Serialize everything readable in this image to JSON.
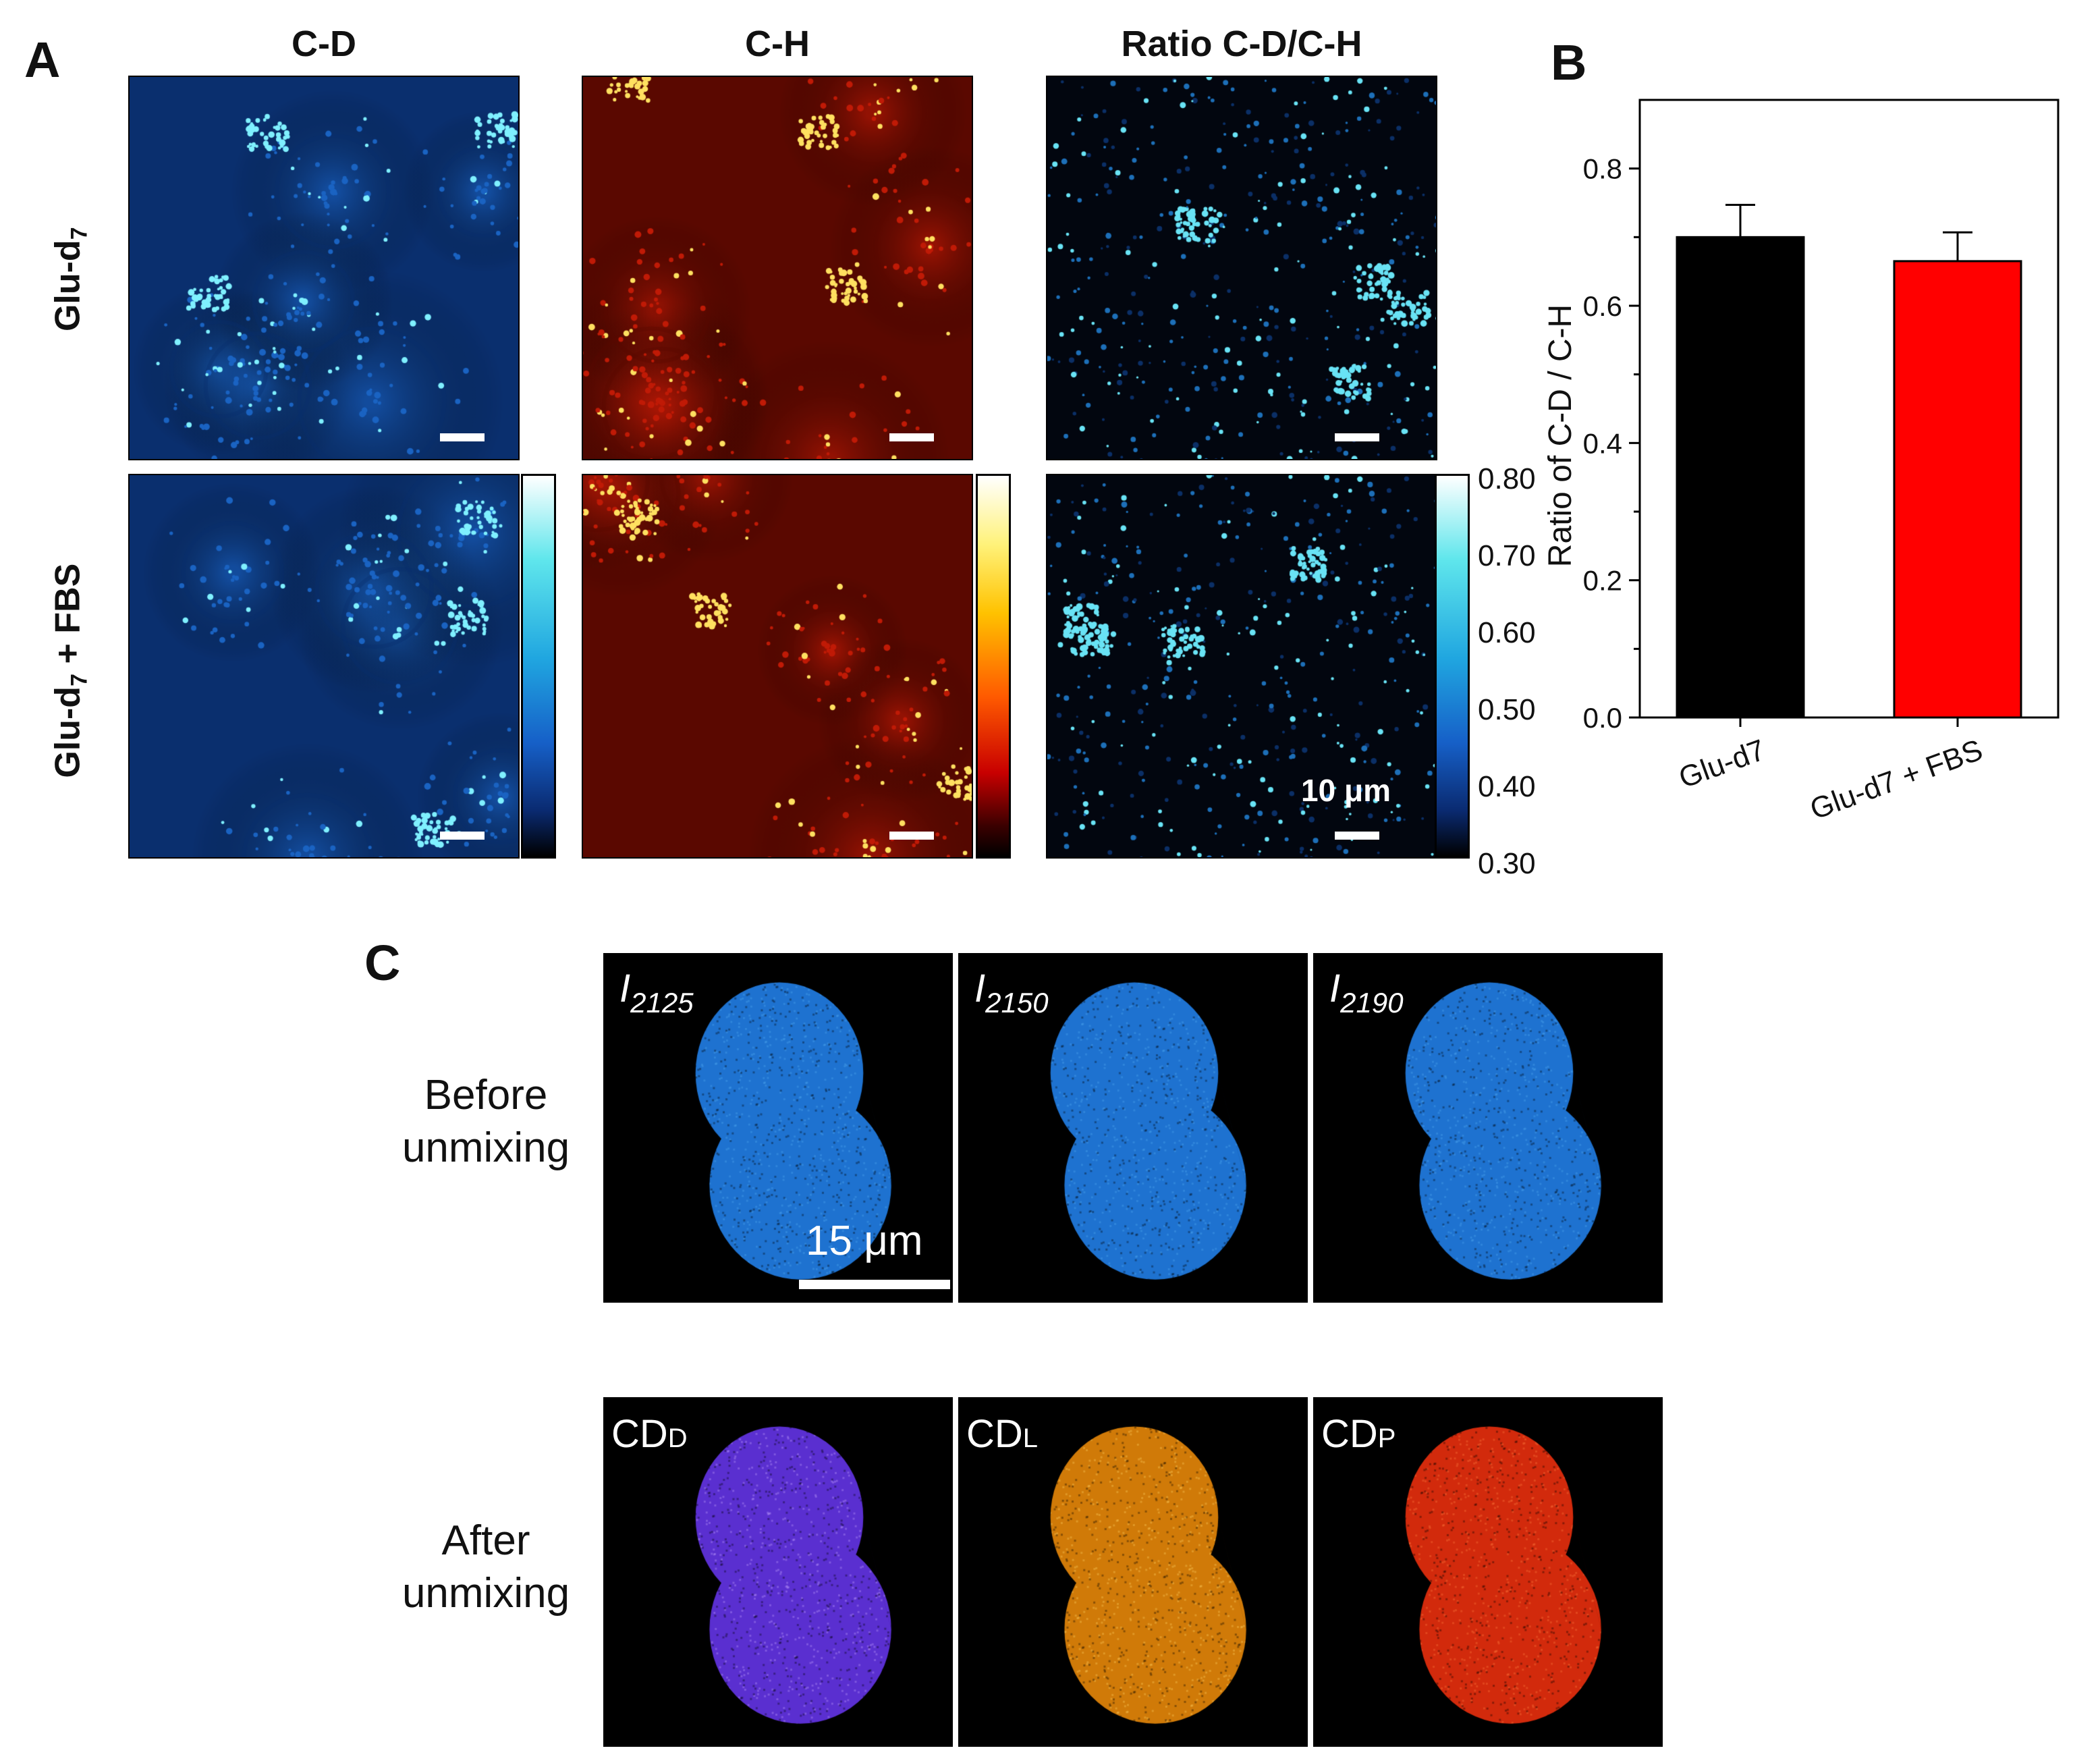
{
  "figure": {
    "panelA": {
      "letter": "A",
      "columns": [
        "C-D",
        "C-H",
        "Ratio C-D/C-H"
      ],
      "rows": [
        {
          "label_main": "Glu-d",
          "label_sub": "7",
          "label_rest": ""
        },
        {
          "label_main": "Glu-d",
          "label_sub": "7",
          "label_rest": " + FBS"
        }
      ],
      "colorbar_ticks": [
        "0.80",
        "0.70",
        "0.60",
        "0.50",
        "0.40",
        "0.30"
      ],
      "scalebar_label": "10 μm",
      "colors": {
        "cd": "#1a6fd6",
        "ch": "#d42a10",
        "ratio": "#3fb8e8"
      }
    },
    "panelB": {
      "letter": "B"
    },
    "panelC": {
      "letter": "C",
      "row_before": [
        "Before",
        "unmixing"
      ],
      "row_after": [
        "After",
        "unmixing"
      ],
      "before_labels": [
        {
          "main": "I",
          "sub": "2125"
        },
        {
          "main": "I",
          "sub": "2150"
        },
        {
          "main": "I",
          "sub": "2190"
        }
      ],
      "after_labels": [
        {
          "main": "CD",
          "sub": "D"
        },
        {
          "main": "CD",
          "sub": "L"
        },
        {
          "main": "CD",
          "sub": "P"
        }
      ],
      "scalebar_label": "15 μm",
      "colors": {
        "before": "#1e72d0",
        "d": "#7a4ef0",
        "l": "#f0940c",
        "p": "#e03410"
      }
    }
  },
  "chart_data": {
    "type": "bar",
    "categories": [
      "Glu-d7",
      "Glu-d7 + FBS"
    ],
    "values": [
      0.7,
      0.665
    ],
    "errors": [
      0.047,
      0.042
    ],
    "bar_colors": [
      "#000000",
      "#ff0000"
    ],
    "ylabel": "Ratio of C-D / C-H",
    "xlabel": "",
    "ylim": [
      0,
      0.9
    ],
    "yticks": [
      "0.0",
      "0.2",
      "0.4",
      "0.6",
      "0.8"
    ],
    "grid": false
  }
}
